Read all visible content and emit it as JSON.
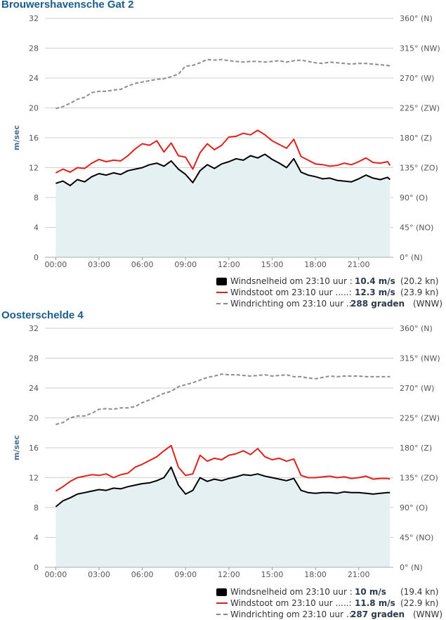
{
  "colors": {
    "speed": "#000000",
    "gust": "#e0201b",
    "direction": "#8c8c8c",
    "area": "#e5f0f2",
    "grid": "#cfcfcf",
    "title": "#1a5c8a"
  },
  "chart_data": [
    {
      "type": "line",
      "title": "Brouwershavensche Gat 2",
      "ylabel": "m/sec",
      "ylim": [
        0,
        32
      ],
      "y_ticks": [
        "0",
        "4",
        "8",
        "12",
        "16",
        "20",
        "24",
        "28",
        "32"
      ],
      "y2lim": [
        0,
        360
      ],
      "y2_ticks": [
        "0° (N)",
        "45° (NO)",
        "90° (O)",
        "135° (ZO)",
        "180° (Z)",
        "225° (ZW)",
        "270° (W)",
        "315° (NW)",
        "360° (N)"
      ],
      "x_ticks": [
        "00:00",
        "03:00",
        "06:00",
        "09:00",
        "12:00",
        "15:00",
        "18:00",
        "21:00"
      ],
      "x_range_hours": [
        -0.75,
        23.4
      ],
      "grid": true,
      "legend_position": "bottom-right",
      "series": [
        {
          "name": "Windsnelheid",
          "axis": "left",
          "style": "area-line",
          "x": [
            0,
            0.5,
            1,
            1.5,
            2,
            2.5,
            3,
            3.5,
            4,
            4.5,
            5,
            5.5,
            6,
            6.5,
            7,
            7.5,
            8,
            8.5,
            9,
            9.5,
            10,
            10.5,
            11,
            11.5,
            12,
            12.5,
            13,
            13.5,
            14,
            14.5,
            15,
            15.5,
            16,
            16.5,
            17,
            17.5,
            18,
            18.5,
            19,
            19.5,
            20,
            20.5,
            21,
            21.5,
            22,
            22.5,
            23,
            23.17
          ],
          "values": [
            9.9,
            10.2,
            9.6,
            10.4,
            10.1,
            10.8,
            11.2,
            11.0,
            11.3,
            11.1,
            11.6,
            11.8,
            12.0,
            12.4,
            12.6,
            12.2,
            12.9,
            11.8,
            11.1,
            10.0,
            11.6,
            12.4,
            11.9,
            12.5,
            12.8,
            13.2,
            13.0,
            13.6,
            13.3,
            13.8,
            13.1,
            12.6,
            12.0,
            13.2,
            11.4,
            11.0,
            10.8,
            10.5,
            10.6,
            10.3,
            10.2,
            10.1,
            10.5,
            11.0,
            10.6,
            10.4,
            10.7,
            10.4
          ]
        },
        {
          "name": "Windstoot",
          "axis": "left",
          "style": "line",
          "x": [
            0,
            0.5,
            1,
            1.5,
            2,
            2.5,
            3,
            3.5,
            4,
            4.5,
            5,
            5.5,
            6,
            6.5,
            7,
            7.5,
            8,
            8.5,
            9,
            9.5,
            10,
            10.5,
            11,
            11.5,
            12,
            12.5,
            13,
            13.5,
            14,
            14.5,
            15,
            15.5,
            16,
            16.5,
            17,
            17.5,
            18,
            18.5,
            19,
            19.5,
            20,
            20.5,
            21,
            21.5,
            22,
            22.5,
            23,
            23.17
          ],
          "values": [
            11.3,
            11.8,
            11.4,
            12.0,
            11.9,
            12.6,
            13.1,
            12.8,
            13.0,
            12.9,
            13.6,
            14.5,
            15.2,
            15.0,
            15.6,
            14.1,
            15.3,
            13.6,
            13.4,
            11.8,
            14.0,
            15.2,
            14.4,
            15.0,
            16.1,
            16.2,
            16.6,
            16.4,
            17.0,
            16.4,
            15.6,
            15.1,
            14.6,
            15.8,
            13.5,
            13.0,
            12.5,
            12.4,
            12.2,
            12.3,
            12.6,
            12.4,
            12.8,
            13.3,
            12.7,
            12.6,
            12.8,
            12.3
          ]
        },
        {
          "name": "Windrichting",
          "axis": "right",
          "style": "dashed",
          "x": [
            0,
            0.5,
            1,
            1.5,
            2,
            2.5,
            3,
            3.5,
            4,
            4.5,
            5,
            5.5,
            6,
            6.5,
            7,
            7.5,
            8,
            8.5,
            9,
            9.5,
            10,
            10.5,
            11,
            11.5,
            12,
            12.5,
            13,
            13.5,
            14,
            14.5,
            15,
            15.5,
            16,
            16.5,
            17,
            17.5,
            18,
            18.5,
            19,
            19.5,
            20,
            20.5,
            21,
            21.5,
            22,
            22.5,
            23,
            23.17
          ],
          "values": [
            224,
            227,
            232,
            238,
            241,
            248,
            250,
            250,
            252,
            253,
            258,
            262,
            264,
            266,
            268,
            269,
            272,
            276,
            288,
            289,
            293,
            298,
            297,
            298,
            296,
            295,
            294,
            295,
            295,
            294,
            295,
            296,
            294,
            296,
            297,
            295,
            293,
            292,
            294,
            293,
            292,
            291,
            292,
            292,
            291,
            290,
            289,
            288
          ]
        }
      ]
    },
    {
      "type": "line",
      "title": "Oosterschelde 4",
      "ylabel": "m/sec",
      "ylim": [
        0,
        32
      ],
      "y_ticks": [
        "0",
        "4",
        "8",
        "12",
        "16",
        "20",
        "24",
        "28",
        "32"
      ],
      "y2lim": [
        0,
        360
      ],
      "y2_ticks": [
        "0° (N)",
        "45° (NO)",
        "90° (O)",
        "135° (ZO)",
        "180° (Z)",
        "225° (ZW)",
        "270° (W)",
        "315° (NW)",
        "360° (N)"
      ],
      "x_ticks": [
        "00:00",
        "03:00",
        "06:00",
        "09:00",
        "12:00",
        "15:00",
        "18:00",
        "21:00"
      ],
      "x_range_hours": [
        -0.75,
        23.4
      ],
      "grid": true,
      "legend_position": "bottom-right",
      "series": [
        {
          "name": "Windsnelheid",
          "axis": "left",
          "style": "area-line",
          "x": [
            0,
            0.5,
            1,
            1.5,
            2,
            2.5,
            3,
            3.5,
            4,
            4.5,
            5,
            5.5,
            6,
            6.5,
            7,
            7.5,
            8,
            8.5,
            9,
            9.5,
            10,
            10.5,
            11,
            11.5,
            12,
            12.5,
            13,
            13.5,
            14,
            14.5,
            15,
            15.5,
            16,
            16.5,
            17,
            17.5,
            18,
            18.5,
            19,
            19.5,
            20,
            20.5,
            21,
            21.5,
            22,
            22.5,
            23,
            23.17
          ],
          "values": [
            8.1,
            8.9,
            9.3,
            9.8,
            10.0,
            10.2,
            10.4,
            10.3,
            10.6,
            10.5,
            10.8,
            11.0,
            11.2,
            11.3,
            11.6,
            12.0,
            13.4,
            11.0,
            9.8,
            10.3,
            12.0,
            11.5,
            11.8,
            11.6,
            11.9,
            12.1,
            12.4,
            12.3,
            12.5,
            12.2,
            12.0,
            11.8,
            11.6,
            11.9,
            10.3,
            10.0,
            9.9,
            10.0,
            10.0,
            9.9,
            10.1,
            10.0,
            10.0,
            9.9,
            9.8,
            9.9,
            10.0,
            10.0
          ]
        },
        {
          "name": "Windstoot",
          "axis": "left",
          "style": "line",
          "x": [
            0,
            0.5,
            1,
            1.5,
            2,
            2.5,
            3,
            3.5,
            4,
            4.5,
            5,
            5.5,
            6,
            6.5,
            7,
            7.5,
            8,
            8.5,
            9,
            9.5,
            10,
            10.5,
            11,
            11.5,
            12,
            12.5,
            13,
            13.5,
            14,
            14.5,
            15,
            15.5,
            16,
            16.5,
            17,
            17.5,
            18,
            18.5,
            19,
            19.5,
            20,
            20.5,
            21,
            21.5,
            22,
            22.5,
            23,
            23.17
          ],
          "values": [
            10.2,
            10.8,
            11.5,
            12.0,
            12.2,
            12.4,
            12.3,
            12.5,
            12.0,
            12.4,
            12.6,
            13.4,
            13.8,
            14.3,
            14.8,
            15.6,
            16.3,
            13.4,
            12.3,
            12.5,
            15.0,
            14.2,
            14.6,
            14.4,
            15.0,
            15.2,
            15.6,
            15.1,
            15.9,
            14.8,
            14.4,
            14.6,
            14.2,
            14.5,
            12.3,
            12.0,
            12.0,
            12.1,
            12.2,
            12.0,
            12.1,
            11.9,
            12.0,
            12.2,
            11.8,
            11.9,
            11.9,
            11.8
          ]
        },
        {
          "name": "Windrichting",
          "axis": "right",
          "style": "dashed",
          "x": [
            0,
            0.5,
            1,
            1.5,
            2,
            2.5,
            3,
            3.5,
            4,
            4.5,
            5,
            5.5,
            6,
            6.5,
            7,
            7.5,
            8,
            8.5,
            9,
            9.5,
            10,
            10.5,
            11,
            11.5,
            12,
            12.5,
            13,
            13.5,
            14,
            14.5,
            15,
            15.5,
            16,
            16.5,
            17,
            17.5,
            18,
            18.5,
            19,
            19.5,
            20,
            20.5,
            21,
            21.5,
            22,
            22.5,
            23,
            23.17
          ],
          "values": [
            215,
            218,
            225,
            228,
            228,
            232,
            238,
            239,
            238,
            240,
            240,
            242,
            248,
            252,
            257,
            262,
            265,
            272,
            275,
            278,
            282,
            286,
            288,
            291,
            290,
            290,
            289,
            288,
            289,
            290,
            288,
            289,
            290,
            287,
            287,
            285,
            284,
            286,
            288,
            287,
            288,
            288,
            288,
            287,
            287,
            287,
            287,
            287
          ]
        }
      ]
    }
  ],
  "stations": [
    {
      "title": "Brouwershavensche Gat 2",
      "ylabel": "m/sec",
      "legend": [
        {
          "label": "Windsnelheid om 23:10 uur :",
          "value": "10.4 m/s",
          "alt": "(20.2 kn)"
        },
        {
          "label": "Windstoot om 23:10 uur .....:",
          "value": "12.3 m/s",
          "alt": "(23.9 kn)"
        },
        {
          "label": "Windrichting om 23:10 uur .:",
          "value": "288 graden",
          "alt": "(WNW)"
        }
      ]
    },
    {
      "title": "Oosterschelde 4",
      "ylabel": "m/sec",
      "legend": [
        {
          "label": "Windsnelheid om 23:10 uur :",
          "value": "10 m/s",
          "alt": "(19.4 kn)"
        },
        {
          "label": "Windstoot om 23:10 uur .....:",
          "value": "11.8 m/s",
          "alt": "(22.9 kn)"
        },
        {
          "label": "Windrichting om 23:10 uur .:",
          "value": "287 graden",
          "alt": "(WNW)"
        }
      ]
    }
  ]
}
